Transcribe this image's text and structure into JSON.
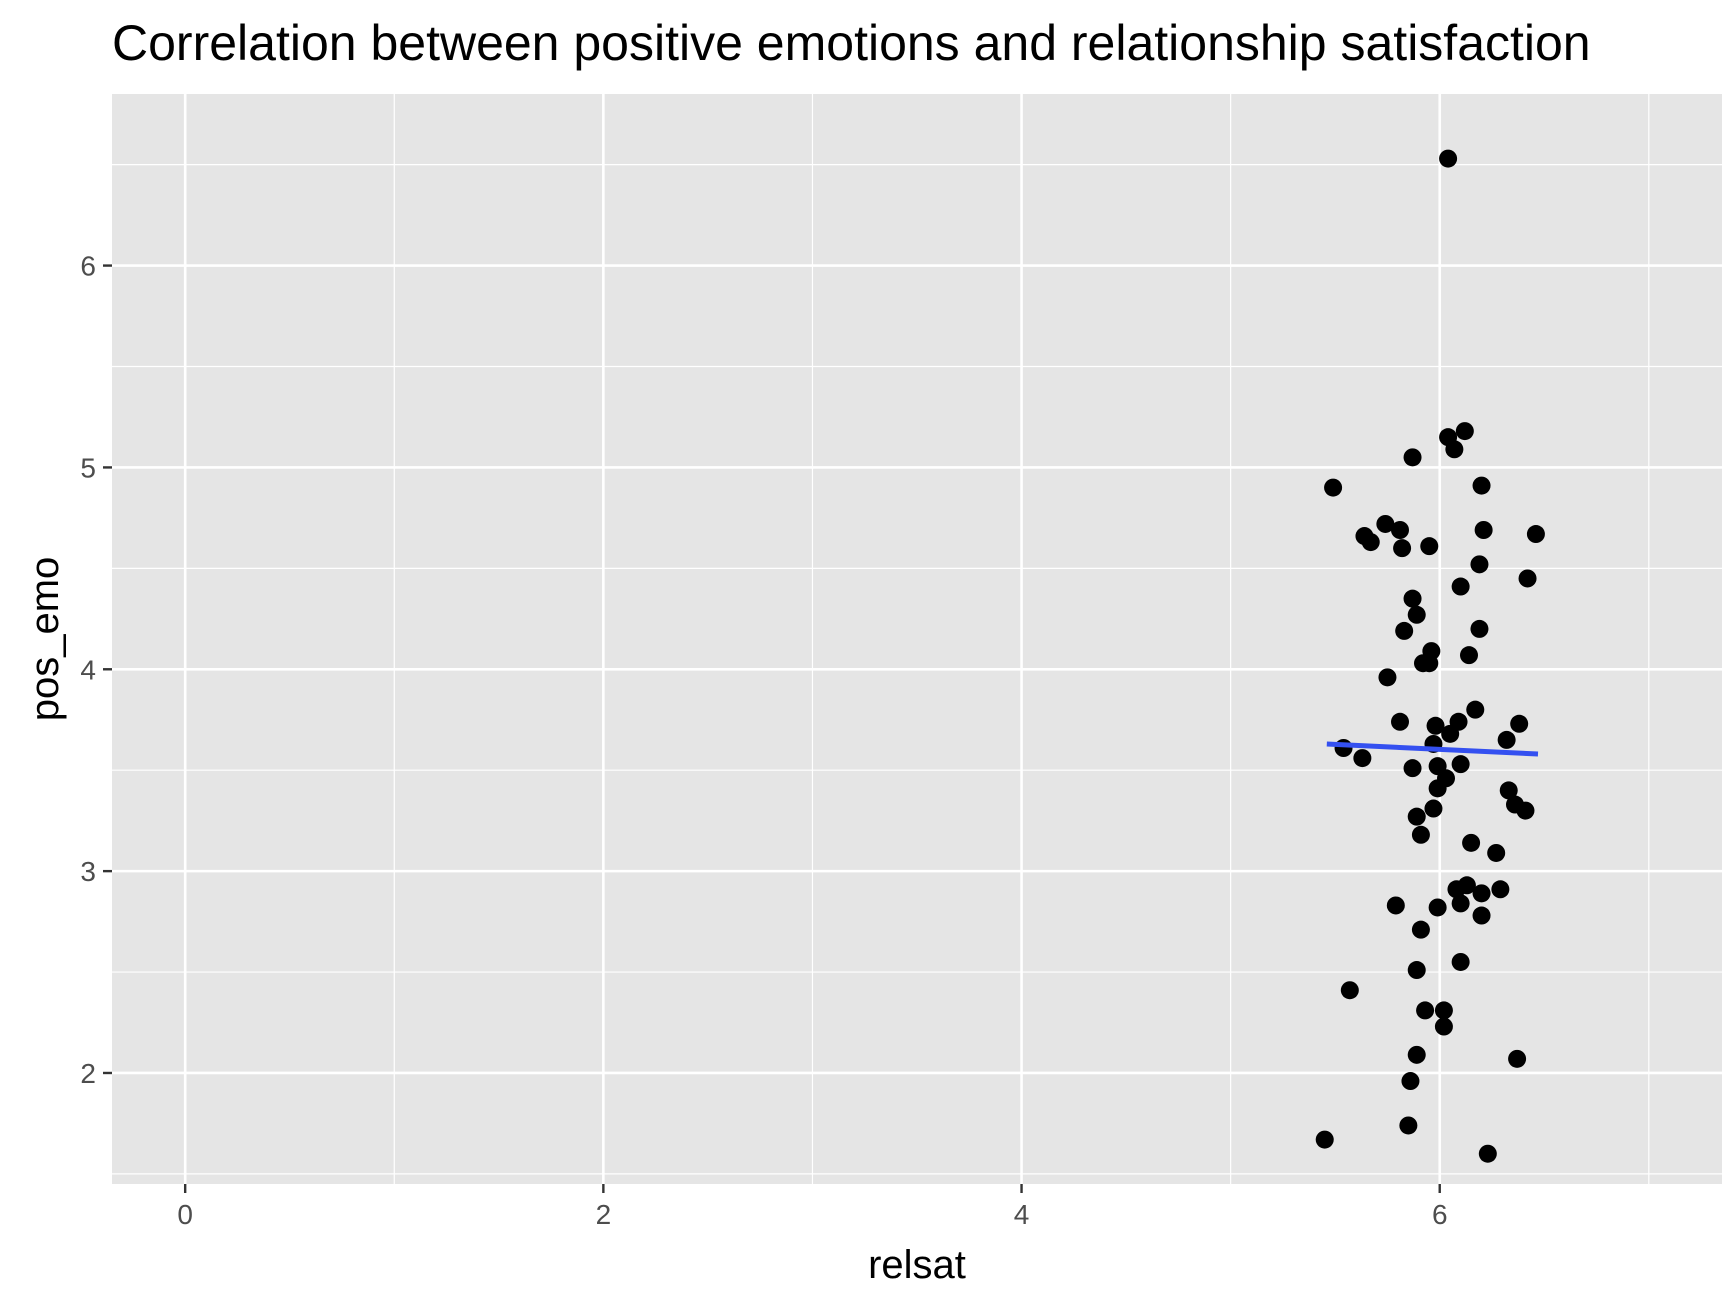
{
  "chart_data": {
    "type": "scatter",
    "title": "Correlation between positive emotions and relationship satisfaction",
    "xlabel": "relsat",
    "ylabel": "pos_emo",
    "xlim": [
      -0.35,
      7.35
    ],
    "ylim": [
      1.45,
      6.85
    ],
    "x_ticks": [
      0,
      2,
      4,
      6
    ],
    "y_ticks": [
      2,
      3,
      4,
      5,
      6
    ],
    "x_tick_labels": [
      "0",
      "2",
      "4",
      "6"
    ],
    "y_tick_labels": [
      "2",
      "3",
      "4",
      "5",
      "6"
    ],
    "grid": true,
    "legend": "none",
    "colors": {
      "panel": "#e5e5e5",
      "grid": "#ffffff",
      "point": "#000000",
      "trend": "#3450f0"
    },
    "points": [
      {
        "x": 6.04,
        "y": 6.53
      },
      {
        "x": 6.12,
        "y": 5.18
      },
      {
        "x": 6.04,
        "y": 5.15
      },
      {
        "x": 6.07,
        "y": 5.09
      },
      {
        "x": 5.87,
        "y": 5.05
      },
      {
        "x": 5.49,
        "y": 4.9
      },
      {
        "x": 6.2,
        "y": 4.91
      },
      {
        "x": 5.74,
        "y": 4.72
      },
      {
        "x": 5.81,
        "y": 4.69
      },
      {
        "x": 5.64,
        "y": 4.66
      },
      {
        "x": 5.67,
        "y": 4.63
      },
      {
        "x": 5.82,
        "y": 4.6
      },
      {
        "x": 5.95,
        "y": 4.61
      },
      {
        "x": 6.21,
        "y": 4.69
      },
      {
        "x": 6.46,
        "y": 4.67
      },
      {
        "x": 6.19,
        "y": 4.52
      },
      {
        "x": 6.42,
        "y": 4.45
      },
      {
        "x": 6.1,
        "y": 4.41
      },
      {
        "x": 5.87,
        "y": 4.35
      },
      {
        "x": 5.89,
        "y": 4.27
      },
      {
        "x": 6.19,
        "y": 4.2
      },
      {
        "x": 5.83,
        "y": 4.19
      },
      {
        "x": 5.96,
        "y": 4.09
      },
      {
        "x": 6.14,
        "y": 4.07
      },
      {
        "x": 5.92,
        "y": 4.03
      },
      {
        "x": 5.95,
        "y": 4.03
      },
      {
        "x": 5.75,
        "y": 3.96
      },
      {
        "x": 6.17,
        "y": 3.8
      },
      {
        "x": 6.09,
        "y": 3.74
      },
      {
        "x": 5.81,
        "y": 3.74
      },
      {
        "x": 5.98,
        "y": 3.72
      },
      {
        "x": 6.38,
        "y": 3.73
      },
      {
        "x": 6.05,
        "y": 3.68
      },
      {
        "x": 6.32,
        "y": 3.65
      },
      {
        "x": 5.97,
        "y": 3.63
      },
      {
        "x": 5.54,
        "y": 3.61
      },
      {
        "x": 5.63,
        "y": 3.56
      },
      {
        "x": 6.1,
        "y": 3.53
      },
      {
        "x": 5.99,
        "y": 3.52
      },
      {
        "x": 5.87,
        "y": 3.51
      },
      {
        "x": 6.03,
        "y": 3.46
      },
      {
        "x": 5.99,
        "y": 3.41
      },
      {
        "x": 6.33,
        "y": 3.4
      },
      {
        "x": 6.36,
        "y": 3.33
      },
      {
        "x": 5.97,
        "y": 3.31
      },
      {
        "x": 6.41,
        "y": 3.3
      },
      {
        "x": 5.89,
        "y": 3.27
      },
      {
        "x": 5.91,
        "y": 3.18
      },
      {
        "x": 6.15,
        "y": 3.14
      },
      {
        "x": 6.27,
        "y": 3.09
      },
      {
        "x": 6.13,
        "y": 2.93
      },
      {
        "x": 6.08,
        "y": 2.91
      },
      {
        "x": 6.29,
        "y": 2.91
      },
      {
        "x": 6.2,
        "y": 2.89
      },
      {
        "x": 6.1,
        "y": 2.84
      },
      {
        "x": 5.79,
        "y": 2.83
      },
      {
        "x": 5.99,
        "y": 2.82
      },
      {
        "x": 6.2,
        "y": 2.78
      },
      {
        "x": 5.91,
        "y": 2.71
      },
      {
        "x": 6.1,
        "y": 2.55
      },
      {
        "x": 5.89,
        "y": 2.51
      },
      {
        "x": 5.57,
        "y": 2.41
      },
      {
        "x": 5.93,
        "y": 2.31
      },
      {
        "x": 6.02,
        "y": 2.31
      },
      {
        "x": 6.02,
        "y": 2.23
      },
      {
        "x": 5.89,
        "y": 2.09
      },
      {
        "x": 6.37,
        "y": 2.07
      },
      {
        "x": 5.86,
        "y": 1.96
      },
      {
        "x": 5.85,
        "y": 1.74
      },
      {
        "x": 5.45,
        "y": 1.67
      },
      {
        "x": 6.23,
        "y": 1.6
      }
    ],
    "trend_line": {
      "x": [
        5.46,
        6.47
      ],
      "y": [
        3.63,
        3.58
      ]
    }
  }
}
